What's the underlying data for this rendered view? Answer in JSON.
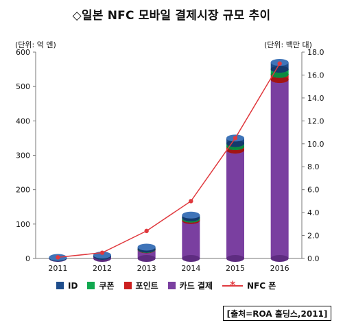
{
  "title": "◇일본 NFC 모바일 결제시장 규모 추이",
  "unit_left": "(단위: 억 엔)",
  "unit_right": "(단위: 백만 대)",
  "source": "[출처=ROA 홀딩스,2011]",
  "legend": [
    {
      "label": "ID",
      "color": "#1e4d8c",
      "key": "id"
    },
    {
      "label": "쿠폰",
      "color": "#11a84f",
      "key": "coupon"
    },
    {
      "label": "포인트",
      "color": "#cc1f1f",
      "key": "point"
    },
    {
      "label": "카드 결제",
      "color": "#7a3fa0",
      "key": "card"
    },
    {
      "label": "NFC 폰",
      "color": "#e0393e",
      "key": "nfc"
    }
  ],
  "chart_data": {
    "type": "bar",
    "categories": [
      "2011",
      "2012",
      "2013",
      "2014",
      "2015",
      "2016"
    ],
    "series": [
      {
        "name": "카드 결제",
        "type": "bar",
        "axis": "left",
        "values": [
          1,
          6,
          25,
          110,
          315,
          520
        ]
      },
      {
        "name": "포인트",
        "type": "bar",
        "axis": "left",
        "values": [
          0,
          0,
          1,
          4,
          10,
          15
        ]
      },
      {
        "name": "쿠폰",
        "type": "bar",
        "axis": "left",
        "values": [
          0,
          0,
          1,
          4,
          9,
          15
        ]
      },
      {
        "name": "ID",
        "type": "bar",
        "axis": "left",
        "values": [
          2,
          4,
          6,
          8,
          16,
          20
        ]
      },
      {
        "name": "NFC 폰",
        "type": "line",
        "axis": "right",
        "values": [
          0.1,
          0.5,
          2.4,
          5.0,
          10.5,
          17.0
        ]
      }
    ],
    "left_axis": {
      "min": 0,
      "max": 600,
      "ticks": [
        "0",
        "100",
        "200",
        "300",
        "400",
        "500",
        "600"
      ]
    },
    "right_axis": {
      "min": 0,
      "max": 18,
      "ticks": [
        "0.0",
        "2.0",
        "4.0",
        "6.0",
        "8.0",
        "10.0",
        "12.0",
        "14.0",
        "16.0",
        "18.0"
      ]
    },
    "grid": false,
    "legend_position": "bottom"
  }
}
